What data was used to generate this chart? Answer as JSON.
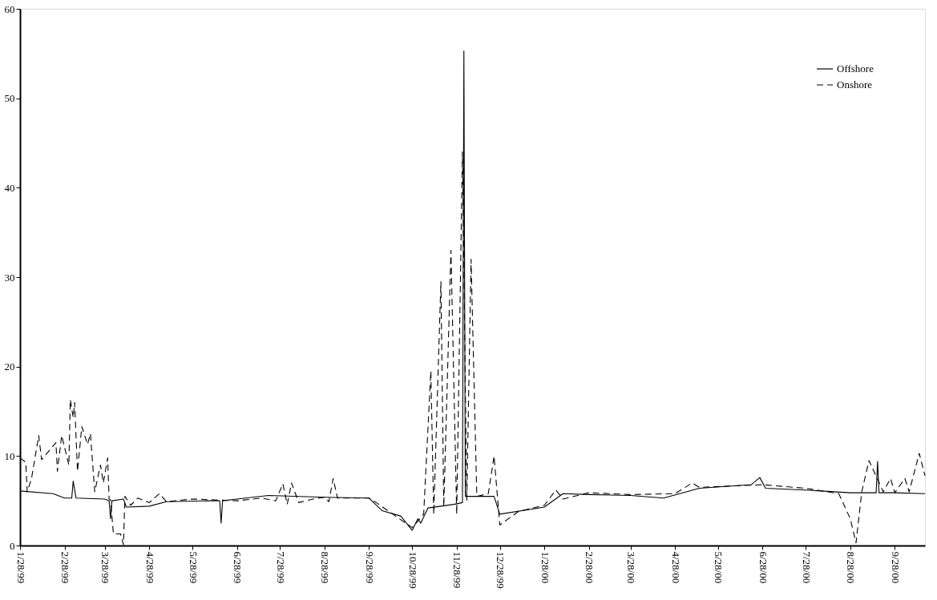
{
  "chart_data": {
    "type": "line",
    "xlim": [
      "1999-01-28",
      "2000-10-19"
    ],
    "ylim": [
      0,
      60
    ],
    "yticks": [
      0,
      10,
      20,
      30,
      40,
      50,
      60
    ],
    "xticks": [
      {
        "value": "1999-01-28",
        "label": "1/28/99"
      },
      {
        "value": "1999-02-28",
        "label": "2/28/99"
      },
      {
        "value": "1999-03-28",
        "label": "3/28/99"
      },
      {
        "value": "1999-04-28",
        "label": "4/28/99"
      },
      {
        "value": "1999-05-28",
        "label": "5/28/99"
      },
      {
        "value": "1999-06-28",
        "label": "6/28/99"
      },
      {
        "value": "1999-07-28",
        "label": "7/28/99"
      },
      {
        "value": "1999-08-28",
        "label": "8/28/99"
      },
      {
        "value": "1999-09-28",
        "label": "9/28/99"
      },
      {
        "value": "1999-10-28",
        "label": "10/28/99"
      },
      {
        "value": "1999-11-28",
        "label": "11/28/99"
      },
      {
        "value": "1999-12-28",
        "label": "12/28/99"
      },
      {
        "value": "2000-01-28",
        "label": "1/28/00"
      },
      {
        "value": "2000-02-28",
        "label": "2/28/00"
      },
      {
        "value": "2000-03-28",
        "label": "3/28/00"
      },
      {
        "value": "2000-04-28",
        "label": "4/28/00"
      },
      {
        "value": "2000-05-28",
        "label": "5/28/00"
      },
      {
        "value": "2000-06-28",
        "label": "6/28/00"
      },
      {
        "value": "2000-07-28",
        "label": "7/28/00"
      },
      {
        "value": "2000-08-28",
        "label": "8/28/00"
      },
      {
        "value": "2000-09-28",
        "label": "9/28/00"
      }
    ],
    "grid": false,
    "legend": "top right",
    "marker": "none",
    "series": [
      {
        "name": "Offshore",
        "color": "#000000",
        "line_style": "solid",
        "x": [
          "1999-01-28",
          "1999-02-20",
          "1999-02-28",
          "1999-03-05",
          "1999-03-06",
          "1999-03-08",
          "1999-03-28",
          "1999-03-31",
          "1999-04-01",
          "1999-04-02",
          "1999-04-10",
          "1999-04-12",
          "1999-04-28",
          "1999-05-10",
          "1999-06-10",
          "1999-06-16",
          "1999-06-17",
          "1999-06-18",
          "1999-06-28",
          "1999-07-20",
          "1999-08-28",
          "1999-09-28",
          "1999-10-07",
          "1999-10-20",
          "1999-10-28",
          "1999-11-01",
          "1999-11-03",
          "1999-11-08",
          "1999-11-26",
          "1999-12-02",
          "1999-12-03",
          "1999-12-04",
          "1999-12-24",
          "1999-12-28",
          "2000-01-28",
          "2000-02-10",
          "2000-02-28",
          "2000-03-28",
          "2000-04-20",
          "2000-05-15",
          "2000-06-20",
          "2000-06-26",
          "2000-06-30",
          "2000-07-28",
          "2000-08-28",
          "2000-09-15",
          "2000-09-16",
          "2000-09-17",
          "2000-09-28",
          "2000-10-19"
        ],
        "values": [
          6.1,
          5.8,
          5.3,
          5.3,
          7.2,
          5.3,
          5.2,
          5.0,
          3.0,
          5.0,
          5.2,
          4.3,
          4.4,
          4.9,
          5.0,
          5.0,
          2.5,
          5.0,
          5.2,
          5.6,
          5.4,
          5.3,
          3.9,
          3.3,
          1.7,
          3.0,
          2.5,
          4.2,
          4.6,
          4.8,
          55.3,
          5.5,
          5.5,
          3.5,
          4.3,
          5.8,
          5.7,
          5.6,
          5.3,
          6.4,
          6.8,
          7.6,
          6.4,
          6.2,
          5.9,
          5.9,
          9.4,
          5.9,
          5.9,
          5.8
        ]
      },
      {
        "name": "Onshore",
        "color": "#000000",
        "line_style": "dashed",
        "x": [
          "1999-01-28",
          "1999-02-01",
          "1999-02-02",
          "1999-02-05",
          "1999-02-10",
          "1999-02-12",
          "1999-02-22",
          "1999-02-23",
          "1999-02-26",
          "1999-03-03",
          "1999-03-04",
          "1999-03-06",
          "1999-03-07",
          "1999-03-09",
          "1999-03-12",
          "1999-03-16",
          "1999-03-18",
          "1999-03-21",
          "1999-03-25",
          "1999-03-27",
          "1999-03-30",
          "1999-03-31",
          "1999-04-01",
          "1999-04-03",
          "1999-04-08",
          "1999-04-10",
          "1999-04-11",
          "1999-04-15",
          "1999-04-20",
          "1999-04-28",
          "1999-05-05",
          "1999-05-10",
          "1999-05-28",
          "1999-06-28",
          "1999-07-15",
          "1999-07-25",
          "1999-07-30",
          "1999-08-02",
          "1999-08-05",
          "1999-08-10",
          "1999-08-20",
          "1999-08-28",
          "1999-08-31",
          "1999-09-03",
          "1999-09-06",
          "1999-09-28",
          "1999-10-03",
          "1999-10-28",
          "1999-11-05",
          "1999-11-10",
          "1999-11-12",
          "1999-11-17",
          "1999-11-19",
          "1999-11-24",
          "1999-11-28",
          "1999-12-02",
          "1999-12-05",
          "1999-12-08",
          "1999-12-12",
          "1999-12-20",
          "1999-12-24",
          "1999-12-28",
          "2000-01-10",
          "2000-01-28",
          "2000-02-05",
          "2000-02-10",
          "2000-02-28",
          "2000-03-28",
          "2000-04-28",
          "2000-05-10",
          "2000-05-15",
          "2000-06-28",
          "2000-07-28",
          "2000-08-20",
          "2000-08-28",
          "2000-09-01",
          "2000-09-05",
          "2000-09-10",
          "2000-09-20",
          "2000-09-25",
          "2000-09-28",
          "2000-10-05",
          "2000-10-08",
          "2000-10-15",
          "2000-10-19"
        ],
        "values": [
          9.8,
          9.3,
          6.0,
          7.5,
          12.3,
          9.6,
          11.5,
          8.3,
          12.3,
          9.0,
          16.3,
          14.3,
          16.0,
          8.3,
          13.3,
          11.3,
          12.5,
          6.0,
          9.0,
          7.0,
          9.8,
          5.2,
          5.1,
          1.3,
          1.3,
          0.1,
          5.5,
          4.5,
          5.3,
          4.8,
          5.8,
          4.9,
          5.2,
          5.0,
          5.3,
          5.0,
          6.9,
          4.6,
          7.0,
          4.8,
          5.2,
          5.4,
          4.9,
          7.5,
          5.3,
          5.3,
          4.8,
          2.0,
          3.5,
          19.5,
          3.5,
          29.5,
          4.3,
          33.0,
          3.5,
          44.0,
          5.0,
          32.0,
          5.5,
          5.8,
          10.0,
          2.3,
          3.8,
          4.5,
          6.2,
          5.2,
          5.9,
          5.7,
          5.8,
          7.0,
          6.5,
          6.8,
          6.4,
          5.8,
          3.0,
          0.3,
          6.0,
          9.5,
          6.0,
          7.5,
          5.9,
          7.5,
          6.0,
          10.3,
          7.8
        ]
      }
    ]
  }
}
